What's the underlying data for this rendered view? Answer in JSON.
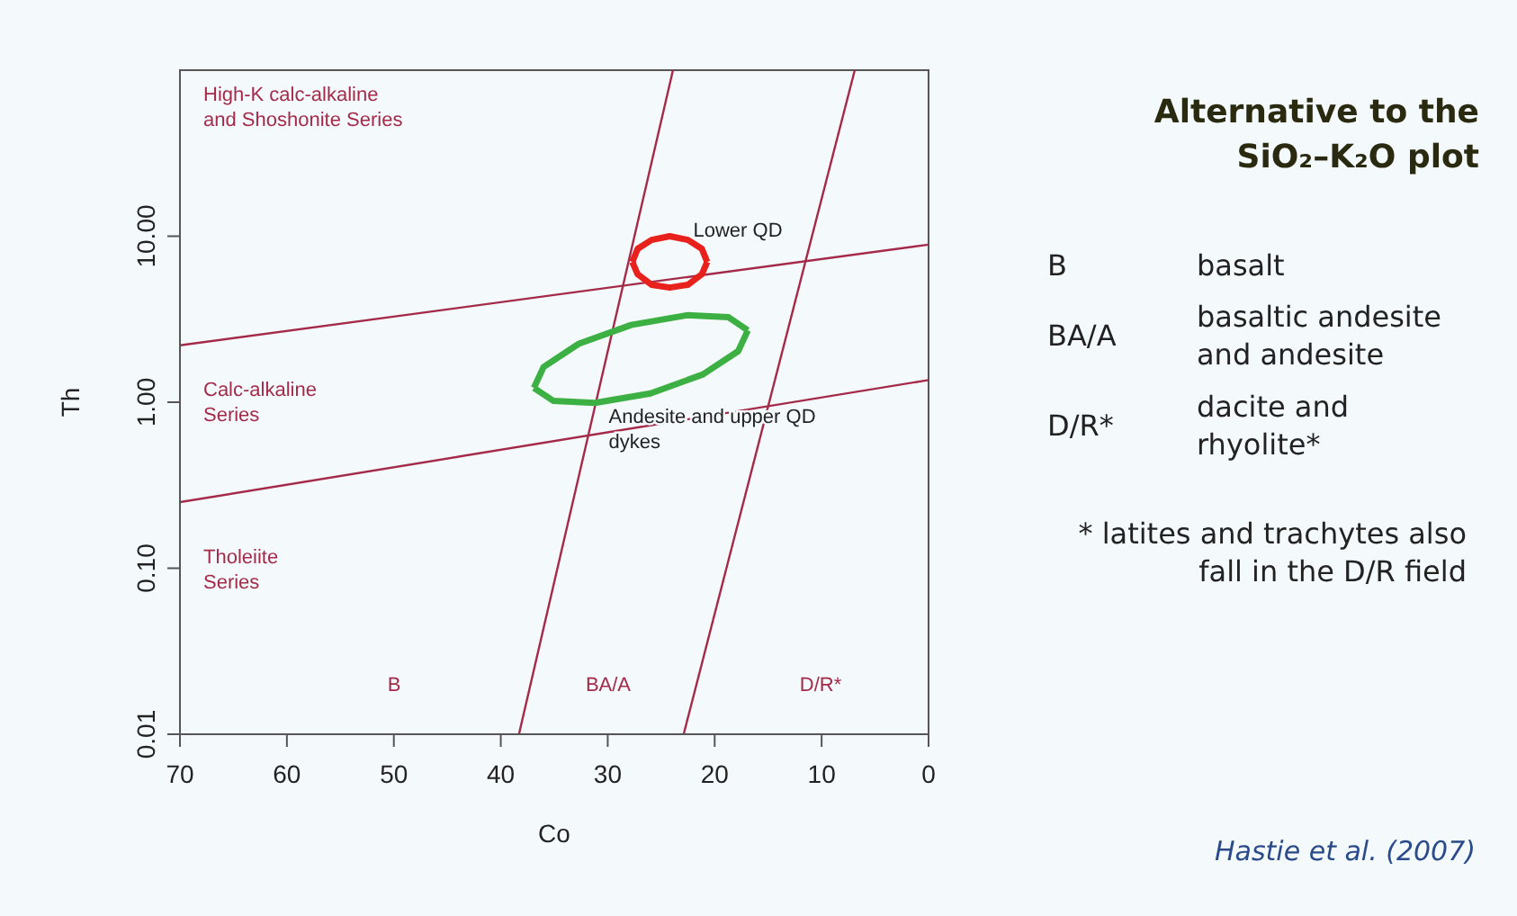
{
  "chart_data": {
    "type": "line",
    "title": "Alternative to the SiO₂–K₂O plot",
    "xlabel": "Co",
    "ylabel": "Th",
    "log": "y",
    "xlim": [
      70,
      0
    ],
    "xticks": [
      70,
      60,
      50,
      40,
      30,
      20,
      10,
      0
    ],
    "ylim": [
      0.01,
      100
    ],
    "yticks": [
      {
        "value": 0.01,
        "label": "0.01"
      },
      {
        "value": 0.1,
        "label": "0.10"
      },
      {
        "value": 1,
        "label": "1.00"
      },
      {
        "value": 10,
        "label": "10.00"
      }
    ],
    "marker": "none",
    "line_style": "solid",
    "grid": false,
    "series": [
      {
        "color": "#a52a4a",
        "x": [
          70,
          0
        ],
        "values": [
          2.2,
          8.9
        ]
      },
      {
        "color": "#a52a4a",
        "x": [
          70,
          0
        ],
        "values": [
          0.25,
          1.36
        ]
      },
      {
        "color": "#a52a4a",
        "x": [
          38.3,
          23.9
        ],
        "values": [
          0.01,
          100
        ]
      },
      {
        "color": "#a52a4a",
        "x": [
          22.9,
          6.9
        ],
        "values": [
          0.01,
          100
        ]
      },
      {
        "color": "#e8211c",
        "x": [
          27.7,
          27.2,
          25.9,
          24.2,
          22.5,
          21.2,
          20.7
        ],
        "values": [
          7.0,
          8.4,
          9.5,
          10,
          9.5,
          8.4,
          7.0
        ]
      },
      {
        "color": "#e8211c",
        "x": [
          20.7,
          21.2,
          22.5,
          24.2,
          25.9,
          27.2,
          27.7
        ],
        "values": [
          7.0,
          5.9,
          5.1,
          4.9,
          5.1,
          5.9,
          7.0
        ]
      },
      {
        "color": "#3cb043",
        "x": [
          16.9,
          18.7,
          22.6,
          27.8,
          32.7,
          36.0,
          36.9
        ],
        "values": [
          2.71,
          3.25,
          3.34,
          2.92,
          2.25,
          1.63,
          1.22
        ]
      },
      {
        "color": "#3cb043",
        "x": [
          36.9,
          35.1,
          31.2,
          26.0,
          21.1,
          17.8,
          16.9
        ],
        "values": [
          1.22,
          1.02,
          0.99,
          1.13,
          1.47,
          2.03,
          2.71
        ]
      }
    ],
    "annotations": [
      "High-K calc-alkaline\nand Shoshonite Series",
      "Calc-alkaline\nSeries",
      "Tholeiite\nSeries",
      "B",
      "BA/A",
      "D/R*",
      {
        "text": "Lower QD",
        "x": 22,
        "y": 10
      },
      {
        "text": "Andesite and upper QD\ndykes",
        "x": 29.9,
        "y": 0.75
      },
      "B",
      "basalt",
      "BA/A",
      "basaltic andesite\nand andesite",
      "D/R*",
      "dacite and\nrhyolite*",
      "* latites and trachytes also\nfall in the D/R field",
      "Hastie et al. (2007)"
    ]
  }
}
